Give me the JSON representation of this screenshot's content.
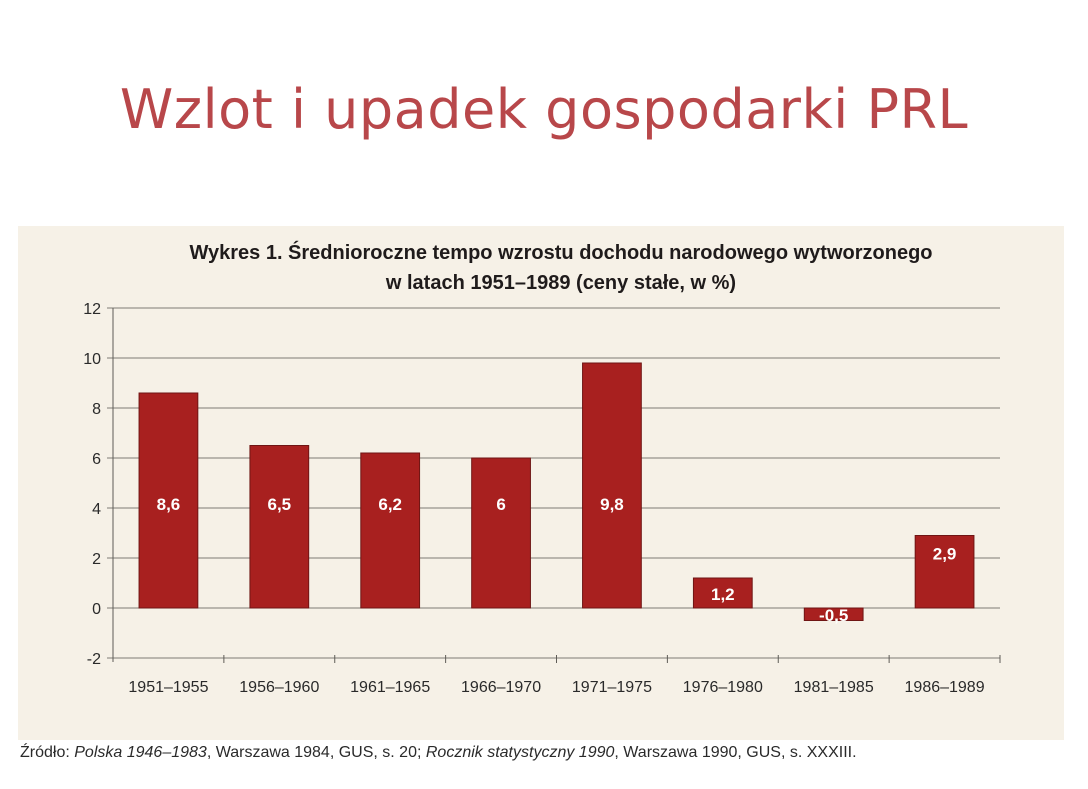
{
  "slide": {
    "title": "Wzlot i upadek gospodarki PRL"
  },
  "chart_data": {
    "type": "bar",
    "title": "Wykres 1. Średnioroczne tempo wzrostu dochodu narodowego wytworzonego",
    "subtitle": "w latach 1951–1989 (ceny stałe, w %)",
    "categories": [
      "1951–1955",
      "1956–1960",
      "1961–1965",
      "1966–1970",
      "1971–1975",
      "1976–1980",
      "1981–1985",
      "1986–1989"
    ],
    "values": [
      8.6,
      6.5,
      6.2,
      6,
      9.8,
      1.2,
      -0.5,
      2.9
    ],
    "value_labels": [
      "8,6",
      "6,5",
      "6,2",
      "6",
      "9,8",
      "1,2",
      "-0,5",
      "2,9"
    ],
    "ylim": [
      -2,
      12
    ],
    "yticks": [
      -2,
      0,
      2,
      4,
      6,
      8,
      10,
      12
    ],
    "grid": true,
    "bar_color": "#a8201f",
    "label_color": "#ffffff"
  },
  "source": {
    "prefix": "Źródło: ",
    "title1": "Polska 1946–1983",
    "part1": ", Warszawa 1984, GUS, s. 20; ",
    "title2": "Rocznik statystyczny 1990",
    "part2": ", Warszawa 1990, GUS, s. XXXIII."
  }
}
